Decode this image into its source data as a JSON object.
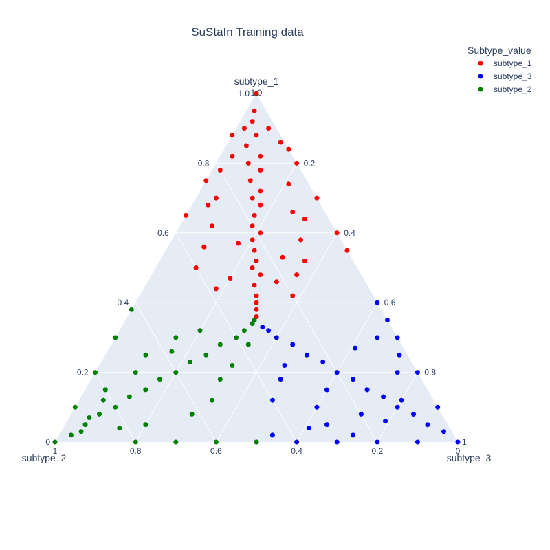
{
  "chart_data": {
    "type": "scatter",
    "subtype": "ternary",
    "title": "SuStaIn Training data",
    "axes": {
      "a": {
        "title": "subtype_1",
        "ticks": [
          "0.2",
          "0.4",
          "0.6",
          "0.8",
          "1.0"
        ],
        "end_label": "1.0"
      },
      "b": {
        "title": "subtype_2",
        "ticks": [
          "0.2",
          "0.4",
          "0.6",
          "0.8"
        ],
        "end_label": "1",
        "zero_label": "0"
      },
      "c": {
        "title": "subtype_3",
        "ticks": [
          "0.2",
          "0.4",
          "0.6",
          "0.8"
        ],
        "end_label": "1",
        "zero_label": "0"
      }
    },
    "grid": true,
    "legend": {
      "title": "Subtype_value",
      "placement": "top-right",
      "entries": [
        {
          "name": "subtype_1",
          "color": "#ff0000"
        },
        {
          "name": "subtype_3",
          "color": "#0000ff"
        },
        {
          "name": "subtype_2",
          "color": "#008000"
        }
      ]
    },
    "series": [
      {
        "name": "subtype_1",
        "color": "#ff0000",
        "points_abc": [
          [
            1,
            0,
            0
          ],
          [
            0.95,
            0.03,
            0.02
          ],
          [
            0.92,
            0.05,
            0.03
          ],
          [
            0.9,
            0.08,
            0.02
          ],
          [
            0.88,
            0.06,
            0.06
          ],
          [
            0.85,
            0.1,
            0.05
          ],
          [
            0.82,
            0.08,
            0.1
          ],
          [
            0.8,
            0.12,
            0.08
          ],
          [
            0.78,
            0.1,
            0.12
          ],
          [
            0.75,
            0.14,
            0.11
          ],
          [
            0.72,
            0.13,
            0.15
          ],
          [
            0.7,
            0.16,
            0.14
          ],
          [
            0.68,
            0.15,
            0.17
          ],
          [
            0.65,
            0.18,
            0.17
          ],
          [
            0.62,
            0.2,
            0.18
          ],
          [
            0.6,
            0.19,
            0.21
          ],
          [
            0.58,
            0.22,
            0.2
          ],
          [
            0.55,
            0.23,
            0.22
          ],
          [
            0.52,
            0.24,
            0.24
          ],
          [
            0.5,
            0.26,
            0.24
          ],
          [
            0.48,
            0.25,
            0.27
          ],
          [
            0.45,
            0.28,
            0.27
          ],
          [
            0.42,
            0.29,
            0.29
          ],
          [
            0.4,
            0.3,
            0.3
          ],
          [
            0.38,
            0.31,
            0.31
          ],
          [
            0.36,
            0.32,
            0.32
          ],
          [
            0.9,
            0.02,
            0.08
          ],
          [
            0.86,
            0.01,
            0.13
          ],
          [
            0.82,
            0.15,
            0.03
          ],
          [
            0.78,
            0.2,
            0.02
          ],
          [
            0.74,
            0.05,
            0.21
          ],
          [
            0.7,
            0.25,
            0.05
          ],
          [
            0.66,
            0.08,
            0.26
          ],
          [
            0.62,
            0.3,
            0.08
          ],
          [
            0.58,
            0.1,
            0.32
          ],
          [
            0.56,
            0.35,
            0.09
          ],
          [
            0.52,
            0.12,
            0.36
          ],
          [
            0.5,
            0.4,
            0.1
          ],
          [
            0.48,
            0.16,
            0.36
          ],
          [
            0.44,
            0.38,
            0.18
          ],
          [
            0.42,
            0.2,
            0.38
          ],
          [
            0.8,
            0.0,
            0.2
          ],
          [
            0.75,
            0.25,
            0.0
          ],
          [
            0.7,
            0.0,
            0.3
          ],
          [
            0.65,
            0.35,
            0.0
          ],
          [
            0.6,
            0.0,
            0.4
          ],
          [
            0.55,
            0.0,
            0.45
          ],
          [
            0.88,
            0.12,
            0.0
          ],
          [
            0.84,
            0.0,
            0.16
          ],
          [
            0.68,
            0.28,
            0.04
          ],
          [
            0.64,
            0.06,
            0.3
          ],
          [
            0.57,
            0.26,
            0.17
          ],
          [
            0.53,
            0.17,
            0.3
          ],
          [
            0.47,
            0.33,
            0.2
          ],
          [
            0.46,
            0.22,
            0.32
          ]
        ]
      },
      {
        "name": "subtype_3",
        "color": "#0000ff",
        "points_abc": [
          [
            0,
            0,
            1
          ],
          [
            0.03,
            0.02,
            0.95
          ],
          [
            0.05,
            0.05,
            0.9
          ],
          [
            0.08,
            0.07,
            0.85
          ],
          [
            0.1,
            0.1,
            0.8
          ],
          [
            0.13,
            0.12,
            0.75
          ],
          [
            0.15,
            0.15,
            0.7
          ],
          [
            0.18,
            0.17,
            0.65
          ],
          [
            0.2,
            0.2,
            0.6
          ],
          [
            0.23,
            0.22,
            0.55
          ],
          [
            0.25,
            0.25,
            0.5
          ],
          [
            0.28,
            0.27,
            0.45
          ],
          [
            0.3,
            0.3,
            0.4
          ],
          [
            0.32,
            0.31,
            0.37
          ],
          [
            0.33,
            0.32,
            0.35
          ],
          [
            0.0,
            0.1,
            0.9
          ],
          [
            0.0,
            0.2,
            0.8
          ],
          [
            0.0,
            0.3,
            0.7
          ],
          [
            0.0,
            0.4,
            0.6
          ],
          [
            0.0,
            0.5,
            0.5
          ],
          [
            0.02,
            0.25,
            0.73
          ],
          [
            0.04,
            0.35,
            0.61
          ],
          [
            0.06,
            0.15,
            0.79
          ],
          [
            0.1,
            0.3,
            0.6
          ],
          [
            0.12,
            0.4,
            0.48
          ],
          [
            0.15,
            0.25,
            0.6
          ],
          [
            0.18,
            0.35,
            0.47
          ],
          [
            0.2,
            0.05,
            0.75
          ],
          [
            0.25,
            0.02,
            0.73
          ],
          [
            0.3,
            0.05,
            0.65
          ],
          [
            0.35,
            0.0,
            0.65
          ],
          [
            0.4,
            0.0,
            0.6
          ],
          [
            0.3,
            0.0,
            0.7
          ],
          [
            0.2,
            0.0,
            0.8
          ],
          [
            0.1,
            0.0,
            0.9
          ],
          [
            0.22,
            0.32,
            0.46
          ],
          [
            0.27,
            0.12,
            0.61
          ],
          [
            0.12,
            0.08,
            0.8
          ],
          [
            0.08,
            0.2,
            0.72
          ],
          [
            0.05,
            0.3,
            0.65
          ],
          [
            0.02,
            0.45,
            0.53
          ]
        ]
      },
      {
        "name": "subtype_2",
        "color": "#008000",
        "points_abc": [
          [
            0,
            1,
            0
          ],
          [
            0.02,
            0.95,
            0.03
          ],
          [
            0.05,
            0.9,
            0.05
          ],
          [
            0.08,
            0.85,
            0.07
          ],
          [
            0.1,
            0.8,
            0.1
          ],
          [
            0.13,
            0.75,
            0.12
          ],
          [
            0.15,
            0.7,
            0.15
          ],
          [
            0.18,
            0.65,
            0.17
          ],
          [
            0.2,
            0.6,
            0.2
          ],
          [
            0.23,
            0.55,
            0.22
          ],
          [
            0.25,
            0.5,
            0.25
          ],
          [
            0.28,
            0.45,
            0.27
          ],
          [
            0.3,
            0.4,
            0.3
          ],
          [
            0.32,
            0.37,
            0.31
          ],
          [
            0.34,
            0.34,
            0.32
          ],
          [
            0.35,
            0.33,
            0.32
          ],
          [
            0.1,
            0.9,
            0.0
          ],
          [
            0.2,
            0.8,
            0.0
          ],
          [
            0.3,
            0.7,
            0.0
          ],
          [
            0.38,
            0.62,
            0.0
          ],
          [
            0.0,
            0.8,
            0.2
          ],
          [
            0.0,
            0.7,
            0.3
          ],
          [
            0.0,
            0.6,
            0.4
          ],
          [
            0.0,
            0.5,
            0.5
          ],
          [
            0.05,
            0.75,
            0.2
          ],
          [
            0.08,
            0.62,
            0.3
          ],
          [
            0.12,
            0.55,
            0.33
          ],
          [
            0.15,
            0.8,
            0.05
          ],
          [
            0.2,
            0.7,
            0.1
          ],
          [
            0.25,
            0.65,
            0.1
          ],
          [
            0.3,
            0.55,
            0.15
          ],
          [
            0.18,
            0.5,
            0.32
          ],
          [
            0.22,
            0.45,
            0.33
          ],
          [
            0.07,
            0.88,
            0.05
          ],
          [
            0.12,
            0.82,
            0.06
          ],
          [
            0.03,
            0.92,
            0.05
          ],
          [
            0.04,
            0.82,
            0.14
          ],
          [
            0.26,
            0.58,
            0.16
          ],
          [
            0.32,
            0.48,
            0.2
          ],
          [
            0.28,
            0.38,
            0.34
          ]
        ]
      }
    ]
  }
}
